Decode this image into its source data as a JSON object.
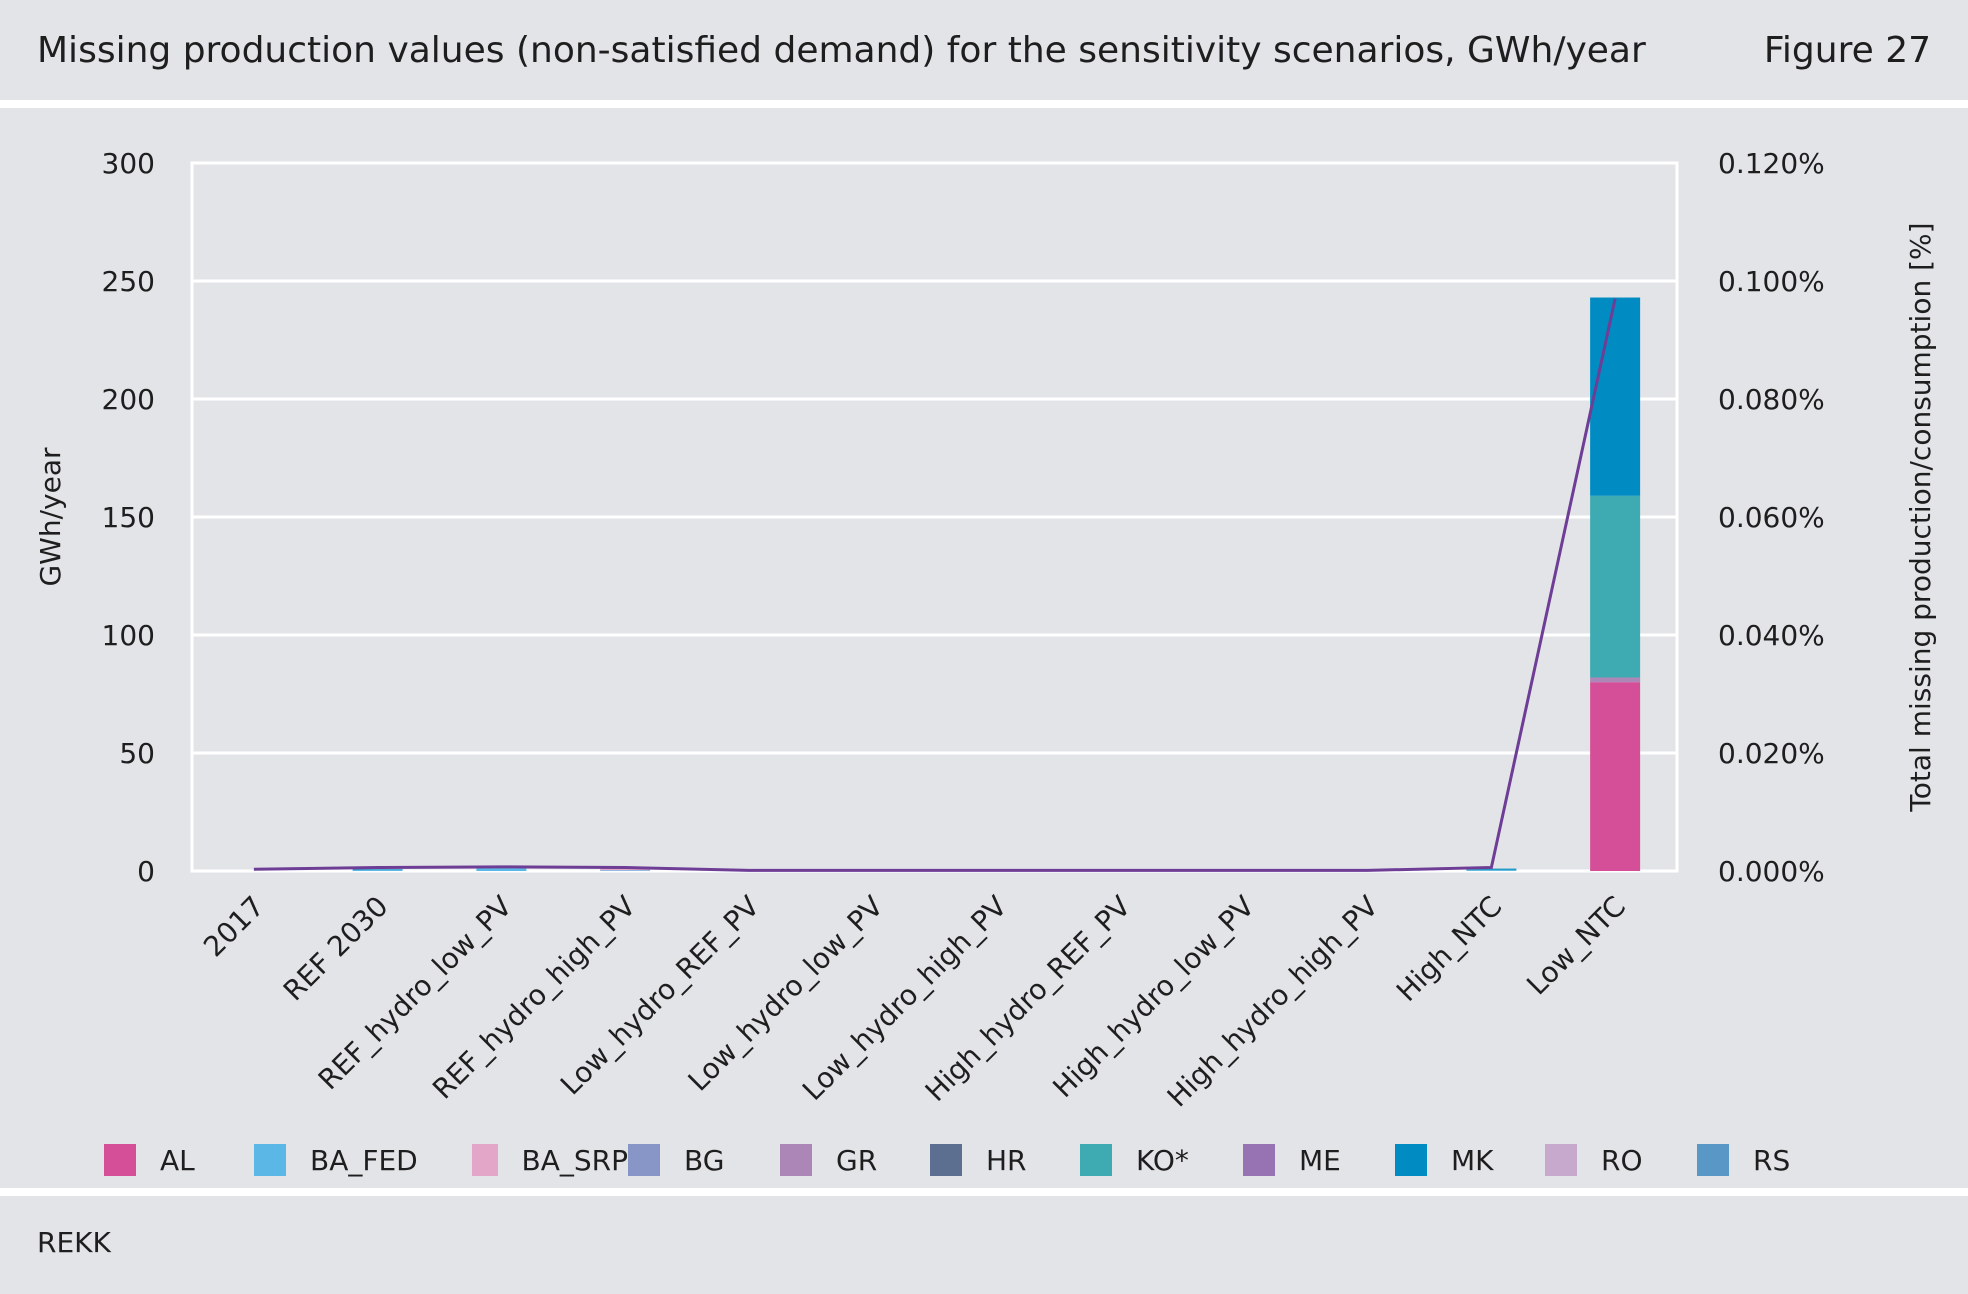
{
  "header": {
    "title": "Missing production values (non-satisfied demand) for the sensitivity scenarios, GWh/year",
    "figure_label": "Figure 27"
  },
  "footer": {
    "source": "REKK"
  },
  "chart_data": {
    "type": "bar",
    "stacked": true,
    "categories": [
      "2017",
      "REF 2030",
      "REF_hydro_low_PV",
      "REF_hydro_high_PV",
      "Low_hydro_REF_PV",
      "Low_hydro_low_PV",
      "Low_hydro_high_PV",
      "High_hydro_REF_PV",
      "High_hydro_low_PV",
      "High_hydro_high_PV",
      "High_NTC",
      "Low_NTC"
    ],
    "ylabel": "GWh/year",
    "y2label": "Total missing production/consumption [%]",
    "ylim": [
      0,
      300
    ],
    "y2lim": [
      0,
      0.12
    ],
    "yticks": [
      "0",
      "50",
      "100",
      "150",
      "200",
      "250",
      "300"
    ],
    "y2ticks": [
      "0.000%",
      "0.020%",
      "0.040%",
      "0.060%",
      "0.080%",
      "0.100%",
      "0.120%"
    ],
    "grid": true,
    "legend_position": "bottom",
    "series": [
      {
        "name": "AL",
        "color": "#d44f97",
        "values": [
          0,
          0,
          0,
          0,
          0,
          0,
          0,
          0,
          0,
          0,
          0,
          80
        ]
      },
      {
        "name": "BA_FED",
        "color": "#5bb8e6",
        "values": [
          0,
          0.4,
          1.2,
          0.3,
          0,
          0,
          0,
          0,
          0,
          0,
          0.3,
          0
        ]
      },
      {
        "name": "BA_SRP",
        "color": "#e3a6c9",
        "values": [
          0,
          0,
          0,
          0.8,
          0,
          0,
          0,
          0,
          0,
          0,
          0,
          0
        ]
      },
      {
        "name": "BG",
        "color": "#8796c6",
        "values": [
          0,
          0,
          0,
          0,
          0,
          0,
          0,
          0,
          0,
          0,
          0,
          0
        ]
      },
      {
        "name": "GR",
        "color": "#ac86b7",
        "values": [
          0,
          0,
          0,
          0,
          0,
          0,
          0,
          0,
          0,
          0,
          0,
          2
        ]
      },
      {
        "name": "HR",
        "color": "#5c6f91",
        "values": [
          0,
          0,
          0,
          0,
          0,
          0,
          0,
          0,
          0,
          0,
          0,
          0
        ]
      },
      {
        "name": "KO*",
        "color": "#3eaab1",
        "values": [
          0,
          0,
          0.3,
          0,
          0,
          0,
          0,
          0,
          0,
          0,
          0.2,
          77
        ]
      },
      {
        "name": "ME",
        "color": "#9873b4",
        "values": [
          0,
          0,
          0,
          0,
          0,
          0,
          0,
          0,
          0,
          0,
          0,
          0
        ]
      },
      {
        "name": "MK",
        "color": "#008cc2",
        "values": [
          0,
          0.3,
          0.4,
          0.2,
          0,
          0,
          0,
          0,
          0,
          0,
          0.5,
          84
        ]
      },
      {
        "name": "RO",
        "color": "#c6a9cc",
        "values": [
          0,
          0,
          0,
          0,
          0,
          0,
          0,
          0,
          0,
          0,
          0,
          0
        ]
      },
      {
        "name": "RS",
        "color": "#5897c6",
        "values": [
          0,
          0,
          0,
          0,
          0,
          0,
          0,
          0,
          0,
          0,
          0,
          0
        ]
      }
    ],
    "line_series": {
      "axis": "y2",
      "color": "#6e3d96",
      "values": [
        0.0003,
        0.0006,
        0.0007,
        0.0006,
        0.0001,
        0.0001,
        0.0001,
        0.0001,
        0.0001,
        0.0001,
        0.0006,
        0.097
      ]
    }
  }
}
